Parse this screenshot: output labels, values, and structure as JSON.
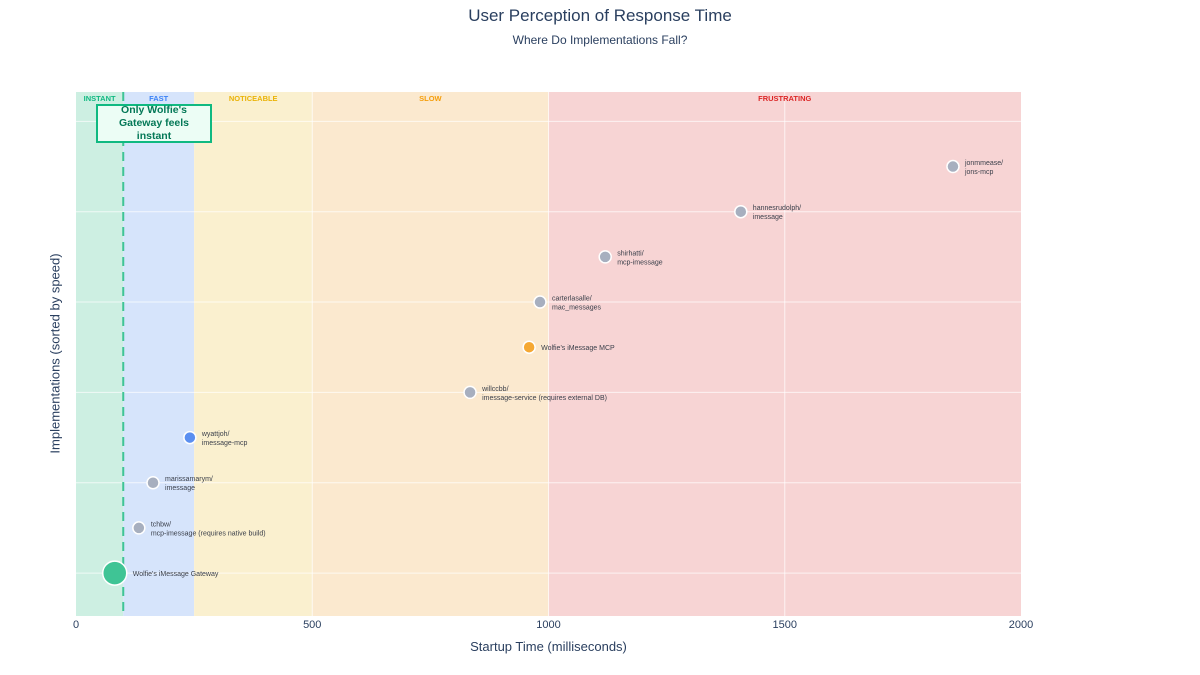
{
  "chart_data": {
    "type": "scatter",
    "title": "User Perception of Response Time",
    "subtitle": "Where Do Implementations Fall?",
    "xlabel": "Startup Time (milliseconds)",
    "ylabel": "Implementations (sorted by speed)",
    "xlim": [
      0,
      2000
    ],
    "ylim": [
      -0.95,
      10.65
    ],
    "xticks": [
      0,
      500,
      1000,
      1500,
      2000
    ],
    "ygrid": [
      0,
      2,
      4,
      6,
      8,
      10
    ],
    "grid": true,
    "legend": "none",
    "threshold_line": {
      "x": 100,
      "style": "dashed",
      "color": "#3fc495"
    },
    "bands": [
      {
        "label": "INSTANT",
        "from": 0,
        "to": 100,
        "fill": "#cdefe2",
        "color": "#10b981"
      },
      {
        "label": "FAST",
        "from": 100,
        "to": 250,
        "fill": "#d6e4fb",
        "color": "#3b82f6"
      },
      {
        "label": "NOTICEABLE",
        "from": 250,
        "to": 500,
        "fill": "#faf0cf",
        "color": "#eab308"
      },
      {
        "label": "SLOW",
        "from": 500,
        "to": 1000,
        "fill": "#fbe9cf",
        "color": "#f59e0b"
      },
      {
        "label": "FRUSTRATING",
        "from": 1000,
        "to": 2000,
        "fill": "#f7d4d4",
        "color": "#dc2626"
      }
    ],
    "annotation": "Only Wolfie's Gateway feels instant",
    "points": [
      {
        "label": [
          "Wolfie's iMessage Gateway"
        ],
        "x": 82,
        "y": 0,
        "color": "#3fc495",
        "size": "large"
      },
      {
        "label": [
          "tchbw/",
          "mcp-imessage (requires native build)"
        ],
        "x": 133,
        "y": 1,
        "color": "#a7afbf",
        "size": "normal"
      },
      {
        "label": [
          "marissamarym/",
          "imessage"
        ],
        "x": 163,
        "y": 2,
        "color": "#a7afbf",
        "size": "normal"
      },
      {
        "label": [
          "wyattjoh/",
          "imessage-mcp"
        ],
        "x": 241,
        "y": 3,
        "color": "#5b8ff0",
        "size": "normal"
      },
      {
        "label": [
          "willccbb/",
          "imessage-service (requires external DB)"
        ],
        "x": 834,
        "y": 4,
        "color": "#a7afbf",
        "size": "normal"
      },
      {
        "label": [
          "Wolfie's iMessage MCP"
        ],
        "x": 959,
        "y": 5,
        "color": "#f5a833",
        "size": "normal"
      },
      {
        "label": [
          "carterlasalle/",
          "mac_messages"
        ],
        "x": 982,
        "y": 6,
        "color": "#a7afbf",
        "size": "normal"
      },
      {
        "label": [
          "shirhatti/",
          "mcp-imessage"
        ],
        "x": 1120,
        "y": 7,
        "color": "#a7afbf",
        "size": "normal"
      },
      {
        "label": [
          "hannesrudolph/",
          "imessage"
        ],
        "x": 1407,
        "y": 8,
        "color": "#a7afbf",
        "size": "normal"
      },
      {
        "label": [
          "jonmmease/",
          "jons-mcp"
        ],
        "x": 1856,
        "y": 9,
        "color": "#a7afbf",
        "size": "normal"
      }
    ]
  }
}
